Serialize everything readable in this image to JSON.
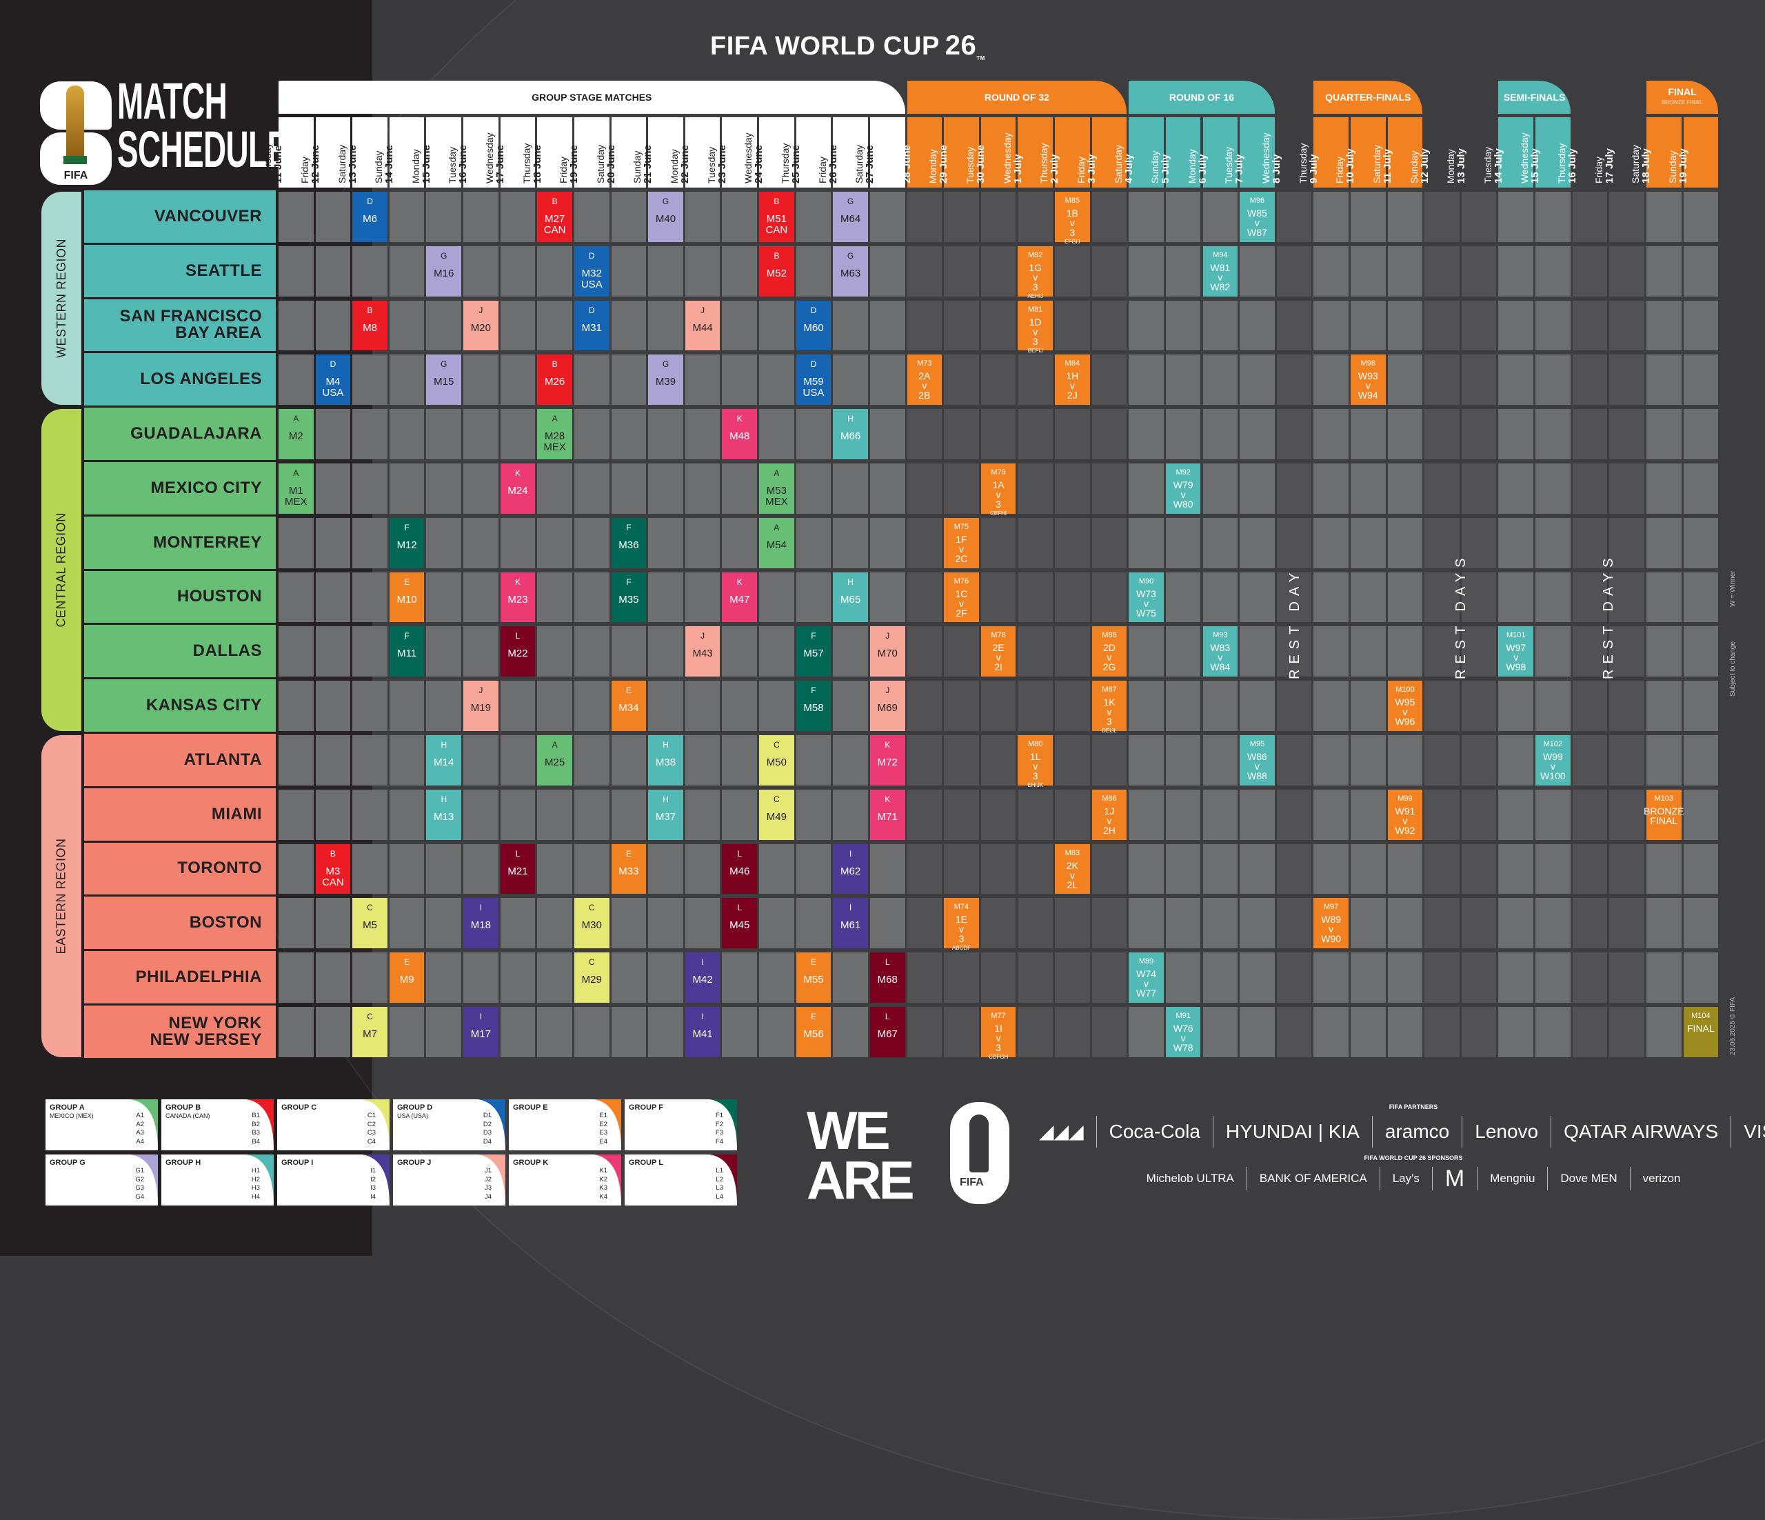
{
  "header": {
    "title": "FIFA WORLD CUP",
    "title_num": "26",
    "title_tm": "TM",
    "logo_label": "FIFA",
    "page_title_line1": "MATCH",
    "page_title_line2": "SCHEDULE"
  },
  "stages": [
    {
      "label": "GROUP STAGE MATCHES",
      "sub": "",
      "start": 0,
      "span": 17,
      "bg": "#ffffff",
      "fg": "#231f20"
    },
    {
      "label": "ROUND OF 32",
      "sub": "",
      "start": 17,
      "span": 6,
      "bg": "#f28121",
      "fg": "#ffffff"
    },
    {
      "label": "ROUND OF 16",
      "sub": "",
      "start": 23,
      "span": 4,
      "bg": "#52b9b5",
      "fg": "#ffffff"
    },
    {
      "label": "QUARTER-FINALS",
      "sub": "",
      "start": 28,
      "span": 3,
      "bg": "#f28121",
      "fg": "#ffffff"
    },
    {
      "label": "SEMI-FINALS",
      "sub": "",
      "start": 33,
      "span": 2,
      "bg": "#52b9b5",
      "fg": "#ffffff"
    },
    {
      "label": "FINAL",
      "sub": "BRONZE FINAL",
      "start": 37,
      "span": 2,
      "bg": "#f28121",
      "fg": "#ffffff"
    }
  ],
  "dates": [
    {
      "day": "Thursday",
      "date": "11 June",
      "stage": 0
    },
    {
      "day": "Friday",
      "date": "12 June",
      "stage": 0
    },
    {
      "day": "Saturday",
      "date": "13 June",
      "stage": 0
    },
    {
      "day": "Sunday",
      "date": "14 June",
      "stage": 0
    },
    {
      "day": "Monday",
      "date": "15 June",
      "stage": 0
    },
    {
      "day": "Tuesday",
      "date": "16 June",
      "stage": 0
    },
    {
      "day": "Wednesday",
      "date": "17 June",
      "stage": 0
    },
    {
      "day": "Thursday",
      "date": "18 June",
      "stage": 0
    },
    {
      "day": "Friday",
      "date": "19 June",
      "stage": 0
    },
    {
      "day": "Saturday",
      "date": "20 June",
      "stage": 0
    },
    {
      "day": "Sunday",
      "date": "21 June",
      "stage": 0
    },
    {
      "day": "Monday",
      "date": "22 June",
      "stage": 0
    },
    {
      "day": "Tuesday",
      "date": "23 June",
      "stage": 0
    },
    {
      "day": "Wednesday",
      "date": "24 June",
      "stage": 0
    },
    {
      "day": "Thursday",
      "date": "25 June",
      "stage": 0
    },
    {
      "day": "Friday",
      "date": "26 June",
      "stage": 0
    },
    {
      "day": "Saturday",
      "date": "27 June",
      "stage": 0
    },
    {
      "day": "Sunday",
      "date": "28 June",
      "stage": 1
    },
    {
      "day": "Monday",
      "date": "29 June",
      "stage": 1
    },
    {
      "day": "Tuesday",
      "date": "30 June",
      "stage": 1
    },
    {
      "day": "Wednesday",
      "date": "1 July",
      "stage": 1
    },
    {
      "day": "Thursday",
      "date": "2 July",
      "stage": 1
    },
    {
      "day": "Friday",
      "date": "3 July",
      "stage": 1
    },
    {
      "day": "Saturday",
      "date": "4 July",
      "stage": 2
    },
    {
      "day": "Sunday",
      "date": "5 July",
      "stage": 2
    },
    {
      "day": "Monday",
      "date": "6 July",
      "stage": 2
    },
    {
      "day": "Tuesday",
      "date": "7 July",
      "stage": 2
    },
    {
      "day": "Wednesday",
      "date": "8 July",
      "stage": -1
    },
    {
      "day": "Thursday",
      "date": "9 July",
      "stage": 3
    },
    {
      "day": "Friday",
      "date": "10 July",
      "stage": 3
    },
    {
      "day": "Saturday",
      "date": "11 July",
      "stage": 3
    },
    {
      "day": "Sunday",
      "date": "12 July",
      "stage": -1
    },
    {
      "day": "Monday",
      "date": "13 July",
      "stage": -1
    },
    {
      "day": "Tuesday",
      "date": "14 July",
      "stage": 4
    },
    {
      "day": "Wednesday",
      "date": "15 July",
      "stage": 4
    },
    {
      "day": "Thursday",
      "date": "16 July",
      "stage": -1
    },
    {
      "day": "Friday",
      "date": "17 July",
      "stage": -1
    },
    {
      "day": "Saturday",
      "date": "18 July",
      "stage": 5
    },
    {
      "day": "Sunday",
      "date": "19 July",
      "stage": 5
    }
  ],
  "regions": [
    {
      "label": "WESTERN REGION",
      "rows": [
        0,
        3
      ],
      "color": "#a8d9cf",
      "city_color": "#52b9b5"
    },
    {
      "label": "CENTRAL REGION",
      "rows": [
        4,
        9
      ],
      "color": "#b5d652",
      "city_color": "#66bf75"
    },
    {
      "label": "EASTERN REGION",
      "rows": [
        10,
        15
      ],
      "color": "#f6a397",
      "city_color": "#f2826f"
    }
  ],
  "cities": [
    "VANCOUVER",
    "SEATTLE",
    "SAN FRANCISCO\nBAY AREA",
    "LOS ANGELES",
    "GUADALAJARA",
    "MEXICO CITY",
    "MONTERREY",
    "HOUSTON",
    "DALLAS",
    "KANSAS CITY",
    "ATLANTA",
    "MIAMI",
    "TORONTO",
    "BOSTON",
    "PHILADELPHIA",
    "NEW YORK\nNEW JERSEY"
  ],
  "group_colors": {
    "A": "#66bf75",
    "B": "#ec1c24",
    "C": "#e6e874",
    "D": "#1565b4",
    "E": "#f28121",
    "F": "#006854",
    "G": "#aba3d3",
    "H": "#52b9b5",
    "I": "#4b3a96",
    "J": "#f7a799",
    "K": "#ec3a74",
    "L": "#7b0020"
  },
  "group_dark_text": [
    "A",
    "C",
    "G",
    "J"
  ],
  "stage_colors": {
    "r32": "#f28121",
    "r16": "#52b9b5",
    "qf": "#f28121",
    "sf": "#52b9b5",
    "bronze": "#f28121",
    "final": "#9b8a1e"
  },
  "group_matches": [
    {
      "row": 0,
      "col": 2,
      "group": "D",
      "match": "M6"
    },
    {
      "row": 0,
      "col": 7,
      "group": "B",
      "match": "M27",
      "host": "CAN"
    },
    {
      "row": 0,
      "col": 10,
      "group": "G",
      "match": "M40"
    },
    {
      "row": 0,
      "col": 13,
      "group": "B",
      "match": "M51",
      "host": "CAN"
    },
    {
      "row": 0,
      "col": 15,
      "group": "G",
      "match": "M64"
    },
    {
      "row": 1,
      "col": 4,
      "group": "G",
      "match": "M16"
    },
    {
      "row": 1,
      "col": 8,
      "group": "D",
      "match": "M32",
      "host": "USA"
    },
    {
      "row": 1,
      "col": 13,
      "group": "B",
      "match": "M52"
    },
    {
      "row": 1,
      "col": 15,
      "group": "G",
      "match": "M63"
    },
    {
      "row": 2,
      "col": 2,
      "group": "B",
      "match": "M8"
    },
    {
      "row": 2,
      "col": 5,
      "group": "J",
      "match": "M20"
    },
    {
      "row": 2,
      "col": 8,
      "group": "D",
      "match": "M31"
    },
    {
      "row": 2,
      "col": 11,
      "group": "J",
      "match": "M44"
    },
    {
      "row": 2,
      "col": 14,
      "group": "D",
      "match": "M60"
    },
    {
      "row": 3,
      "col": 1,
      "group": "D",
      "match": "M4",
      "host": "USA"
    },
    {
      "row": 3,
      "col": 4,
      "group": "G",
      "match": "M15"
    },
    {
      "row": 3,
      "col": 7,
      "group": "B",
      "match": "M26"
    },
    {
      "row": 3,
      "col": 10,
      "group": "G",
      "match": "M39"
    },
    {
      "row": 3,
      "col": 14,
      "group": "D",
      "match": "M59",
      "host": "USA"
    },
    {
      "row": 4,
      "col": 0,
      "group": "A",
      "match": "M2"
    },
    {
      "row": 4,
      "col": 7,
      "group": "A",
      "match": "M28",
      "host": "MEX"
    },
    {
      "row": 4,
      "col": 12,
      "group": "K",
      "match": "M48"
    },
    {
      "row": 4,
      "col": 15,
      "group": "H",
      "match": "M66"
    },
    {
      "row": 5,
      "col": 0,
      "group": "A",
      "match": "M1",
      "host": "MEX"
    },
    {
      "row": 5,
      "col": 6,
      "group": "K",
      "match": "M24"
    },
    {
      "row": 5,
      "col": 13,
      "group": "A",
      "match": "M53",
      "host": "MEX"
    },
    {
      "row": 6,
      "col": 3,
      "group": "F",
      "match": "M12"
    },
    {
      "row": 6,
      "col": 9,
      "group": "F",
      "match": "M36"
    },
    {
      "row": 6,
      "col": 13,
      "group": "A",
      "match": "M54"
    },
    {
      "row": 7,
      "col": 3,
      "group": "E",
      "match": "M10"
    },
    {
      "row": 7,
      "col": 6,
      "group": "K",
      "match": "M23"
    },
    {
      "row": 7,
      "col": 9,
      "group": "F",
      "match": "M35"
    },
    {
      "row": 7,
      "col": 12,
      "group": "K",
      "match": "M47"
    },
    {
      "row": 7,
      "col": 15,
      "group": "H",
      "match": "M65"
    },
    {
      "row": 8,
      "col": 3,
      "group": "F",
      "match": "M11"
    },
    {
      "row": 8,
      "col": 6,
      "group": "L",
      "match": "M22"
    },
    {
      "row": 8,
      "col": 11,
      "group": "J",
      "match": "M43"
    },
    {
      "row": 8,
      "col": 14,
      "group": "F",
      "match": "M57"
    },
    {
      "row": 8,
      "col": 16,
      "group": "J",
      "match": "M70"
    },
    {
      "row": 9,
      "col": 5,
      "group": "J",
      "match": "M19"
    },
    {
      "row": 9,
      "col": 9,
      "group": "E",
      "match": "M34"
    },
    {
      "row": 9,
      "col": 14,
      "group": "F",
      "match": "M58"
    },
    {
      "row": 9,
      "col": 16,
      "group": "J",
      "match": "M69"
    },
    {
      "row": 10,
      "col": 4,
      "group": "H",
      "match": "M14"
    },
    {
      "row": 10,
      "col": 7,
      "group": "A",
      "match": "M25"
    },
    {
      "row": 10,
      "col": 10,
      "group": "H",
      "match": "M38"
    },
    {
      "row": 10,
      "col": 13,
      "group": "C",
      "match": "M50"
    },
    {
      "row": 10,
      "col": 16,
      "group": "K",
      "match": "M72"
    },
    {
      "row": 11,
      "col": 4,
      "group": "H",
      "match": "M13"
    },
    {
      "row": 11,
      "col": 10,
      "group": "H",
      "match": "M37"
    },
    {
      "row": 11,
      "col": 13,
      "group": "C",
      "match": "M49"
    },
    {
      "row": 11,
      "col": 16,
      "group": "K",
      "match": "M71"
    },
    {
      "row": 12,
      "col": 1,
      "group": "B",
      "match": "M3",
      "host": "CAN"
    },
    {
      "row": 12,
      "col": 6,
      "group": "L",
      "match": "M21"
    },
    {
      "row": 12,
      "col": 9,
      "group": "E",
      "match": "M33"
    },
    {
      "row": 12,
      "col": 12,
      "group": "L",
      "match": "M46"
    },
    {
      "row": 12,
      "col": 15,
      "group": "I",
      "match": "M62"
    },
    {
      "row": 13,
      "col": 2,
      "group": "C",
      "match": "M5"
    },
    {
      "row": 13,
      "col": 5,
      "group": "I",
      "match": "M18"
    },
    {
      "row": 13,
      "col": 8,
      "group": "C",
      "match": "M30"
    },
    {
      "row": 13,
      "col": 12,
      "group": "L",
      "match": "M45"
    },
    {
      "row": 13,
      "col": 15,
      "group": "I",
      "match": "M61"
    },
    {
      "row": 14,
      "col": 3,
      "group": "E",
      "match": "M9"
    },
    {
      "row": 14,
      "col": 8,
      "group": "C",
      "match": "M29"
    },
    {
      "row": 14,
      "col": 11,
      "group": "I",
      "match": "M42"
    },
    {
      "row": 14,
      "col": 14,
      "group": "E",
      "match": "M55"
    },
    {
      "row": 14,
      "col": 16,
      "group": "L",
      "match": "M68"
    },
    {
      "row": 15,
      "col": 2,
      "group": "C",
      "match": "M7"
    },
    {
      "row": 15,
      "col": 5,
      "group": "I",
      "match": "M17"
    },
    {
      "row": 15,
      "col": 11,
      "group": "I",
      "match": "M41"
    },
    {
      "row": 15,
      "col": 14,
      "group": "E",
      "match": "M56"
    },
    {
      "row": 15,
      "col": 16,
      "group": "L",
      "match": "M67"
    }
  ],
  "knockout_matches": [
    {
      "row": 3,
      "col": 17,
      "stage": "r32",
      "match": "M73",
      "lines": [
        "2A",
        "v",
        "2B"
      ]
    },
    {
      "row": 13,
      "col": 18,
      "stage": "r32",
      "match": "M74",
      "lines": [
        "1E",
        "v",
        "3"
      ],
      "small": "ABCDF"
    },
    {
      "row": 6,
      "col": 18,
      "stage": "r32",
      "match": "M75",
      "lines": [
        "1F",
        "v",
        "2C"
      ]
    },
    {
      "row": 7,
      "col": 18,
      "stage": "r32",
      "match": "M76",
      "lines": [
        "1C",
        "v",
        "2F"
      ]
    },
    {
      "row": 15,
      "col": 19,
      "stage": "r32",
      "match": "M77",
      "lines": [
        "1I",
        "v",
        "3"
      ],
      "small": "CDFGH"
    },
    {
      "row": 8,
      "col": 19,
      "stage": "r32",
      "match": "M78",
      "lines": [
        "2E",
        "v",
        "2I"
      ]
    },
    {
      "row": 5,
      "col": 19,
      "stage": "r32",
      "match": "M79",
      "lines": [
        "1A",
        "v",
        "3"
      ],
      "small": "CEFHI"
    },
    {
      "row": 10,
      "col": 20,
      "stage": "r32",
      "match": "M80",
      "lines": [
        "1L",
        "v",
        "3"
      ],
      "small": "EHIJK"
    },
    {
      "row": 2,
      "col": 20,
      "stage": "r32",
      "match": "M81",
      "lines": [
        "1D",
        "v",
        "3"
      ],
      "small": "BEFIJ"
    },
    {
      "row": 1,
      "col": 20,
      "stage": "r32",
      "match": "M82",
      "lines": [
        "1G",
        "v",
        "3"
      ],
      "small": "AEHIJ"
    },
    {
      "row": 12,
      "col": 21,
      "stage": "r32",
      "match": "M83",
      "lines": [
        "2K",
        "v",
        "2L"
      ]
    },
    {
      "row": 3,
      "col": 21,
      "stage": "r32",
      "match": "M84",
      "lines": [
        "1H",
        "v",
        "2J"
      ]
    },
    {
      "row": 0,
      "col": 21,
      "stage": "r32",
      "match": "M85",
      "lines": [
        "1B",
        "v",
        "3"
      ],
      "small": "EFGIJ"
    },
    {
      "row": 11,
      "col": 22,
      "stage": "r32",
      "match": "M86",
      "lines": [
        "1J",
        "v",
        "2H"
      ]
    },
    {
      "row": 9,
      "col": 22,
      "stage": "r32",
      "match": "M87",
      "lines": [
        "1K",
        "v",
        "3"
      ],
      "small": "DEIJL"
    },
    {
      "row": 8,
      "col": 22,
      "stage": "r32",
      "match": "M88",
      "lines": [
        "2D",
        "v",
        "2G"
      ]
    },
    {
      "row": 14,
      "col": 23,
      "stage": "r16",
      "match": "M89",
      "lines": [
        "W74",
        "v",
        "W77"
      ]
    },
    {
      "row": 7,
      "col": 23,
      "stage": "r16",
      "match": "M90",
      "lines": [
        "W73",
        "v",
        "W75"
      ]
    },
    {
      "row": 15,
      "col": 24,
      "stage": "r16",
      "match": "M91",
      "lines": [
        "W76",
        "v",
        "W78"
      ]
    },
    {
      "row": 5,
      "col": 24,
      "stage": "r16",
      "match": "M92",
      "lines": [
        "W79",
        "v",
        "W80"
      ]
    },
    {
      "row": 8,
      "col": 25,
      "stage": "r16",
      "match": "M93",
      "lines": [
        "W83",
        "v",
        "W84"
      ]
    },
    {
      "row": 1,
      "col": 25,
      "stage": "r16",
      "match": "M94",
      "lines": [
        "W81",
        "v",
        "W82"
      ]
    },
    {
      "row": 10,
      "col": 26,
      "stage": "r16",
      "match": "M95",
      "lines": [
        "W86",
        "v",
        "W88"
      ]
    },
    {
      "row": 0,
      "col": 26,
      "stage": "r16",
      "match": "M96",
      "lines": [
        "W85",
        "v",
        "W87"
      ]
    },
    {
      "row": 13,
      "col": 28,
      "stage": "qf",
      "match": "M97",
      "lines": [
        "W89",
        "v",
        "W90"
      ]
    },
    {
      "row": 3,
      "col": 29,
      "stage": "qf",
      "match": "M98",
      "lines": [
        "W93",
        "v",
        "W94"
      ]
    },
    {
      "row": 11,
      "col": 30,
      "stage": "qf",
      "match": "M99",
      "lines": [
        "W91",
        "v",
        "W92"
      ]
    },
    {
      "row": 9,
      "col": 30,
      "stage": "qf",
      "match": "M100",
      "lines": [
        "W95",
        "v",
        "W96"
      ]
    },
    {
      "row": 8,
      "col": 33,
      "stage": "sf",
      "match": "M101",
      "lines": [
        "W97",
        "v",
        "W98"
      ]
    },
    {
      "row": 10,
      "col": 34,
      "stage": "sf",
      "match": "M102",
      "lines": [
        "W99",
        "v",
        "W100"
      ]
    },
    {
      "row": 11,
      "col": 37,
      "stage": "bronze",
      "match": "M103",
      "lines": [
        "BRONZE",
        "FINAL"
      ]
    },
    {
      "row": 15,
      "col": 38,
      "stage": "final",
      "match": "M104",
      "lines": [
        "FINAL"
      ]
    }
  ],
  "rest_labels": [
    {
      "label": "REST DAY",
      "col": 27,
      "span": 1
    },
    {
      "label": "REST DAYS",
      "col": 31,
      "span": 2
    },
    {
      "label": "REST DAYS",
      "col": 35,
      "span": 2
    }
  ],
  "side_notes": {
    "winner_key": "W = Winner",
    "subject": "Subject to change",
    "copyright": "23.06.2025 © FIFA"
  },
  "legend": [
    {
      "title": "GROUP A",
      "host": "MEXICO (MEX)",
      "slots": [
        "A1",
        "A2",
        "A3",
        "A4"
      ],
      "color": "#66bf75"
    },
    {
      "title": "GROUP B",
      "host": "CANADA (CAN)",
      "slots": [
        "B1",
        "B2",
        "B3",
        "B4"
      ],
      "color": "#ec1c24"
    },
    {
      "title": "GROUP C",
      "host": "",
      "slots": [
        "C1",
        "C2",
        "C3",
        "C4"
      ],
      "color": "#e6e874"
    },
    {
      "title": "GROUP D",
      "host": "USA (USA)",
      "slots": [
        "D1",
        "D2",
        "D3",
        "D4"
      ],
      "color": "#1565b4"
    },
    {
      "title": "GROUP E",
      "host": "",
      "slots": [
        "E1",
        "E2",
        "E3",
        "E4"
      ],
      "color": "#f28121"
    },
    {
      "title": "GROUP F",
      "host": "",
      "slots": [
        "F1",
        "F2",
        "F3",
        "F4"
      ],
      "color": "#006854"
    },
    {
      "title": "GROUP G",
      "host": "",
      "slots": [
        "G1",
        "G2",
        "G3",
        "G4"
      ],
      "color": "#aba3d3"
    },
    {
      "title": "GROUP H",
      "host": "",
      "slots": [
        "H1",
        "H2",
        "H3",
        "H4"
      ],
      "color": "#52b9b5"
    },
    {
      "title": "GROUP I",
      "host": "",
      "slots": [
        "I1",
        "I2",
        "I3",
        "I4"
      ],
      "color": "#4b3a96"
    },
    {
      "title": "GROUP J",
      "host": "",
      "slots": [
        "J1",
        "J2",
        "J3",
        "J4"
      ],
      "color": "#f7a799"
    },
    {
      "title": "GROUP K",
      "host": "",
      "slots": [
        "K1",
        "K2",
        "K3",
        "K4"
      ],
      "color": "#ec3a74"
    },
    {
      "title": "GROUP L",
      "host": "",
      "slots": [
        "L1",
        "L2",
        "L3",
        "L4"
      ],
      "color": "#7b0020"
    }
  ],
  "brand": {
    "we_line1": "WE",
    "we_line2": "ARE",
    "we_fifa": "FIFA"
  },
  "sponsors": {
    "partners_header": "FIFA PARTNERS",
    "partners": [
      "adidas-logo",
      "Coca-Cola",
      "HYUNDAI | KIA",
      "aramco",
      "Lenovo",
      "QATAR AIRWAYS",
      "VISA"
    ],
    "sponsors_header": "FIFA WORLD CUP 26 SPONSORS",
    "sponsors": [
      "Michelob ULTRA",
      "BANK OF AMERICA",
      "Lay's",
      "McDonald's",
      "Mengniu",
      "Dove MEN",
      "verizon"
    ]
  }
}
